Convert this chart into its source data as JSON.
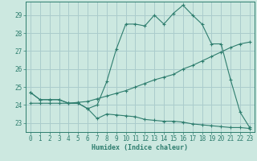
{
  "xlabel": "Humidex (Indice chaleur)",
  "bg_color": "#cce8e0",
  "grid_color": "#aacccc",
  "line_color": "#2e7d6e",
  "xlim": [
    -0.5,
    23.5
  ],
  "ylim": [
    22.5,
    29.75
  ],
  "yticks": [
    23,
    24,
    25,
    26,
    27,
    28,
    29
  ],
  "xticks": [
    0,
    1,
    2,
    3,
    4,
    5,
    6,
    7,
    8,
    9,
    10,
    11,
    12,
    13,
    14,
    15,
    16,
    17,
    18,
    19,
    20,
    21,
    22,
    23
  ],
  "line1_x": [
    0,
    1,
    2,
    3,
    4,
    5,
    6,
    7,
    8,
    9,
    10,
    11,
    12,
    13,
    14,
    15,
    16,
    17,
    18,
    19,
    20,
    21,
    22,
    23
  ],
  "line1_y": [
    24.7,
    24.3,
    24.3,
    24.3,
    24.1,
    24.1,
    23.8,
    24.0,
    25.3,
    27.1,
    28.5,
    28.5,
    28.4,
    29.0,
    28.5,
    29.1,
    29.55,
    29.0,
    28.5,
    27.4,
    27.4,
    25.4,
    23.6,
    22.75
  ],
  "line2_x": [
    0,
    1,
    2,
    3,
    4,
    5,
    6,
    7,
    8,
    9,
    10,
    11,
    12,
    13,
    14,
    15,
    16,
    17,
    18,
    19,
    20,
    21,
    22,
    23
  ],
  "line2_y": [
    24.1,
    24.1,
    24.1,
    24.1,
    24.1,
    24.15,
    24.2,
    24.35,
    24.5,
    24.65,
    24.8,
    25.0,
    25.2,
    25.4,
    25.55,
    25.7,
    26.0,
    26.2,
    26.45,
    26.7,
    26.95,
    27.2,
    27.4,
    27.5
  ],
  "line3_x": [
    0,
    1,
    2,
    3,
    4,
    5,
    6,
    7,
    8,
    9,
    10,
    11,
    12,
    13,
    14,
    15,
    16,
    17,
    18,
    19,
    20,
    21,
    22,
    23
  ],
  "line3_y": [
    24.7,
    24.3,
    24.3,
    24.3,
    24.1,
    24.1,
    23.8,
    23.25,
    23.5,
    23.45,
    23.4,
    23.35,
    23.2,
    23.15,
    23.1,
    23.1,
    23.05,
    22.95,
    22.9,
    22.85,
    22.8,
    22.75,
    22.75,
    22.7
  ]
}
